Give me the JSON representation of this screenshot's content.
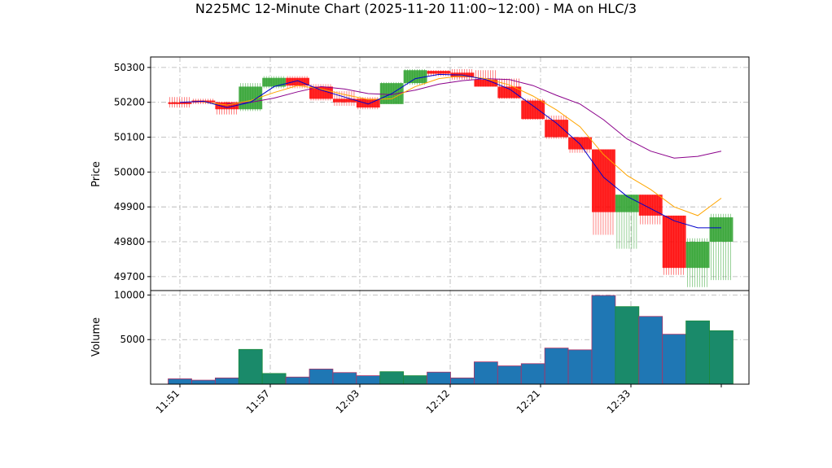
{
  "chart_data": {
    "type": "candlestick",
    "title": "N225MC 12-Minute Chart (2025-11-20 11:00~12:00) - MA on HLC/3",
    "price_axis": {
      "label": "Price",
      "ticks": [
        49700,
        49800,
        49900,
        50000,
        50100,
        50200,
        50300
      ],
      "range": [
        49660,
        50330
      ],
      "grid": true
    },
    "volume_axis": {
      "label": "Volume",
      "ticks": [
        5000,
        10000
      ],
      "range": [
        0,
        10500
      ],
      "grid": true
    },
    "x_ticks": [
      "11:51",
      "11:57",
      "12:03",
      "12:12",
      "12:21",
      "12:33"
    ],
    "colors": {
      "up": "#2ca02c",
      "down": "#ff0000",
      "ma_fast": "#0000cc",
      "ma_mid": "#ffa500",
      "ma_slow": "#8b008b",
      "volume": "#1f77b4",
      "volume_edge": "#aa3366"
    },
    "candles": [
      {
        "o": 50200,
        "h": 50215,
        "l": 50185,
        "c": 50195,
        "v": 600
      },
      {
        "o": 50205,
        "h": 50210,
        "l": 50195,
        "c": 50200,
        "v": 450
      },
      {
        "o": 50200,
        "h": 50202,
        "l": 50165,
        "c": 50180,
        "v": 700
      },
      {
        "o": 50180,
        "h": 50255,
        "l": 50175,
        "c": 50245,
        "v": 3900
      },
      {
        "o": 50245,
        "h": 50275,
        "l": 50240,
        "c": 50270,
        "v": 1200
      },
      {
        "o": 50270,
        "h": 50275,
        "l": 50240,
        "c": 50248,
        "v": 800
      },
      {
        "o": 50245,
        "h": 50252,
        "l": 50205,
        "c": 50210,
        "v": 1700
      },
      {
        "o": 50210,
        "h": 50232,
        "l": 50190,
        "c": 50200,
        "v": 1300
      },
      {
        "o": 50210,
        "h": 50215,
        "l": 50180,
        "c": 50185,
        "v": 950
      },
      {
        "o": 50195,
        "h": 50258,
        "l": 50195,
        "c": 50255,
        "v": 1400
      },
      {
        "o": 50255,
        "h": 50295,
        "l": 50250,
        "c": 50292,
        "v": 950
      },
      {
        "o": 50290,
        "h": 50292,
        "l": 50275,
        "c": 50282,
        "v": 1350
      },
      {
        "o": 50285,
        "h": 50295,
        "l": 50265,
        "c": 50272,
        "v": 700
      },
      {
        "o": 50265,
        "h": 50292,
        "l": 50245,
        "c": 50245,
        "v": 2500
      },
      {
        "o": 50245,
        "h": 50268,
        "l": 50210,
        "c": 50212,
        "v": 2050
      },
      {
        "o": 50205,
        "h": 50210,
        "l": 50150,
        "c": 50152,
        "v": 2300
      },
      {
        "o": 50150,
        "h": 50162,
        "l": 50095,
        "c": 50100,
        "v": 4050
      },
      {
        "o": 50100,
        "h": 50100,
        "l": 50055,
        "c": 50065,
        "v": 3850
      },
      {
        "o": 50065,
        "h": 50065,
        "l": 49820,
        "c": 49885,
        "v": 9950
      },
      {
        "o": 49885,
        "h": 49935,
        "l": 49780,
        "c": 49935,
        "v": 8700
      },
      {
        "o": 49935,
        "h": 49935,
        "l": 49850,
        "c": 49875,
        "v": 7600
      },
      {
        "o": 49875,
        "h": 49875,
        "l": 49705,
        "c": 49725,
        "v": 5600
      },
      {
        "o": 49725,
        "h": 49810,
        "l": 49670,
        "c": 49800,
        "v": 7100
      },
      {
        "o": 49800,
        "h": 49880,
        "l": 49690,
        "c": 49870,
        "v": 6000
      }
    ],
    "ma_fast": [
      50200,
      50203,
      50185,
      50200,
      50245,
      50262,
      50235,
      50215,
      50195,
      50225,
      50268,
      50280,
      50278,
      50265,
      50238,
      50190,
      50140,
      50080,
      49985,
      49930,
      49895,
      49860,
      49840,
      49840
    ],
    "ma_mid": [
      null,
      50201,
      50192,
      50205,
      50228,
      50248,
      50238,
      50222,
      50208,
      50210,
      50245,
      50268,
      50276,
      50268,
      50250,
      50218,
      50178,
      50130,
      50050,
      49990,
      49950,
      49900,
      49875,
      49925
    ],
    "ma_slow": [
      null,
      null,
      50195,
      50200,
      50212,
      50230,
      50245,
      50238,
      50225,
      50222,
      50235,
      50252,
      50262,
      50268,
      50265,
      50248,
      50220,
      50195,
      50150,
      50095,
      50060,
      50040,
      50045,
      50060
    ]
  }
}
